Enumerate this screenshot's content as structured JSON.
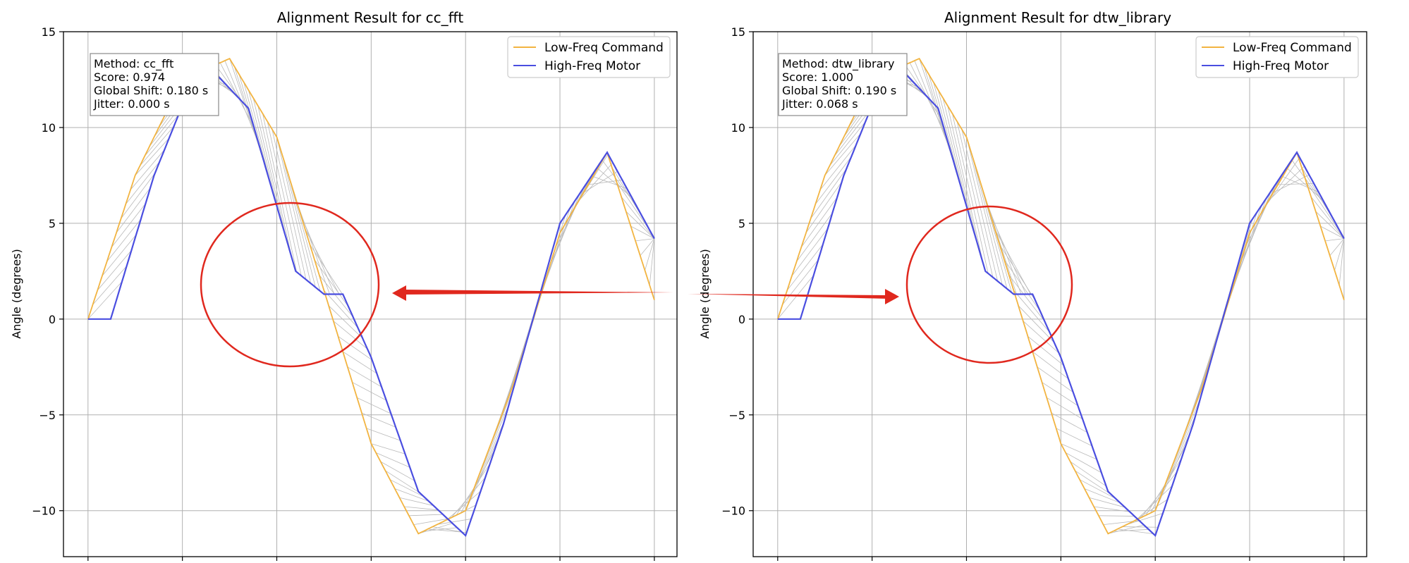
{
  "chart_data": [
    {
      "type": "line",
      "title": "Alignment Result for cc_fft",
      "xlabel": "",
      "ylabel": "Angle (degrees)",
      "ylim": [
        -12.4,
        15
      ],
      "y_ticks": [
        15,
        10,
        5,
        0,
        -5,
        -10
      ],
      "y_tick_labels": [
        "15",
        "10",
        "5",
        "0",
        "−5",
        "−10"
      ],
      "grid": true,
      "legend_placement": "top-right",
      "legend": [
        "Low-Freq Command",
        "High-Freq Motor"
      ],
      "series": [
        {
          "name": "Low-Freq Command",
          "color": "#f2b441",
          "x": [
            0,
            0.25,
            0.5,
            0.75,
            1.0,
            1.25,
            1.5,
            1.75,
            2.0,
            2.25,
            2.5,
            2.75,
            3.0
          ],
          "values": [
            0,
            7.5,
            12.5,
            13.6,
            9.5,
            1.5,
            -6.5,
            -11.2,
            -10.0,
            -3.5,
            4.5,
            8.7,
            1.0
          ]
        },
        {
          "name": "High-Freq Motor",
          "color": "#4a4ee0",
          "x": [
            0,
            0.12,
            0.35,
            0.6,
            0.85,
            1.1,
            1.25,
            1.35,
            1.5,
            1.75,
            2.0,
            2.2,
            2.5,
            2.75,
            3.0
          ],
          "values": [
            0,
            0,
            7.5,
            13.6,
            11.0,
            2.5,
            1.3,
            1.3,
            -2.0,
            -9.0,
            -11.3,
            -5.5,
            5.0,
            8.7,
            4.2
          ]
        }
      ],
      "info_box": {
        "method": "Method: cc_fft",
        "score": "Score: 0.974",
        "shift": "Global Shift: 0.180 s",
        "jitter": "Jitter: 0.000 s"
      }
    },
    {
      "type": "line",
      "title": "Alignment Result for dtw_library",
      "xlabel": "",
      "ylabel": "Angle (degrees)",
      "ylim": [
        -12.4,
        15
      ],
      "y_ticks": [
        15,
        10,
        5,
        0,
        -5,
        -10
      ],
      "y_tick_labels": [
        "15",
        "10",
        "5",
        "0",
        "−5",
        "−10"
      ],
      "grid": true,
      "legend_placement": "top-right",
      "legend": [
        "Low-Freq Command",
        "High-Freq Motor"
      ],
      "series": [
        {
          "name": "Low-Freq Command",
          "color": "#f2b441",
          "x": [
            0,
            0.25,
            0.5,
            0.75,
            1.0,
            1.25,
            1.5,
            1.75,
            2.0,
            2.25,
            2.5,
            2.75,
            3.0
          ],
          "values": [
            0,
            7.5,
            12.5,
            13.6,
            9.5,
            1.5,
            -6.5,
            -11.2,
            -10.0,
            -3.5,
            4.5,
            8.7,
            1.0
          ]
        },
        {
          "name": "High-Freq Motor",
          "color": "#4a4ee0",
          "x": [
            0,
            0.12,
            0.35,
            0.6,
            0.85,
            1.1,
            1.25,
            1.35,
            1.5,
            1.75,
            2.0,
            2.2,
            2.5,
            2.75,
            3.0
          ],
          "values": [
            0,
            0,
            7.5,
            13.6,
            11.0,
            2.5,
            1.3,
            1.3,
            -2.0,
            -9.0,
            -11.3,
            -5.5,
            5.0,
            8.7,
            4.2
          ]
        }
      ],
      "info_box": {
        "method": "Method: dtw_library",
        "score": "Score: 1.000",
        "shift": "Global Shift: 0.190 s",
        "jitter": "Jitter: 0.068 s"
      }
    }
  ],
  "annotations": {
    "circle_color": "#e0281e",
    "arrow_color": "#e0281e",
    "connector_color": "#b9b9b9"
  }
}
